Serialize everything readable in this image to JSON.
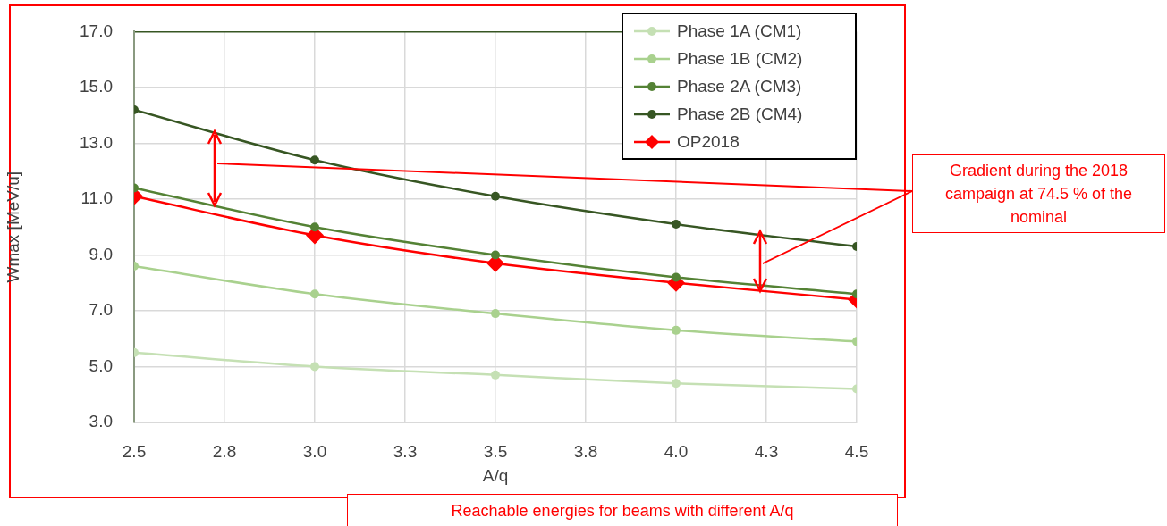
{
  "chart_data": {
    "type": "line",
    "xlabel": "A/q",
    "ylabel": "Wmax [MeV/u]",
    "x": [
      2.5,
      3,
      3.5,
      4,
      4.5
    ],
    "xlim": [
      2.5,
      4.5
    ],
    "xticks": [
      {
        "value": 2.5,
        "label": "2.5"
      },
      {
        "value": 2.75,
        "label": "2.8"
      },
      {
        "value": 3,
        "label": "3.0"
      },
      {
        "value": 3.25,
        "label": "3.3"
      },
      {
        "value": 3.5,
        "label": "3.5"
      },
      {
        "value": 3.75,
        "label": "3.8"
      },
      {
        "value": 4,
        "label": "4.0"
      },
      {
        "value": 4.25,
        "label": "4.3"
      },
      {
        "value": 4.5,
        "label": "4.5"
      }
    ],
    "ylim": [
      3,
      17
    ],
    "yticks": [
      {
        "value": 3,
        "label": "3.0"
      },
      {
        "value": 5,
        "label": "5.0"
      },
      {
        "value": 7,
        "label": "7.0"
      },
      {
        "value": 9,
        "label": "9.0"
      },
      {
        "value": 11,
        "label": "11.0"
      },
      {
        "value": 13,
        "label": "13.0"
      },
      {
        "value": 15,
        "label": "15.0"
      },
      {
        "value": 17,
        "label": "17.0"
      }
    ],
    "grid": true,
    "legend": "top right",
    "marker": "circle",
    "series": [
      {
        "name": "Phase 1A (CM1)",
        "color": "#c5e0b4",
        "values": [
          5.5,
          5.0,
          4.7,
          4.4,
          4.2
        ]
      },
      {
        "name": "Phase 1B (CM2)",
        "color": "#a9d18e",
        "values": [
          8.6,
          7.6,
          6.9,
          6.3,
          5.9
        ]
      },
      {
        "name": "Phase 2A (CM3)",
        "color": "#548235",
        "values": [
          11.4,
          10.0,
          9.0,
          8.2,
          7.6
        ]
      },
      {
        "name": "Phase 2B (CM4)",
        "color": "#375623",
        "values": [
          14.2,
          12.4,
          11.1,
          10.1,
          9.3
        ]
      },
      {
        "name": "OP2018",
        "color": "#ff0000",
        "marker": "diamond",
        "values": [
          11.1,
          9.7,
          8.7,
          8.0,
          7.4
        ]
      }
    ],
    "annotations": [
      "Gradient during the 2018 campaign at 74.5 % of the nominal",
      "Reachable energies for beams with different A/q"
    ]
  }
}
